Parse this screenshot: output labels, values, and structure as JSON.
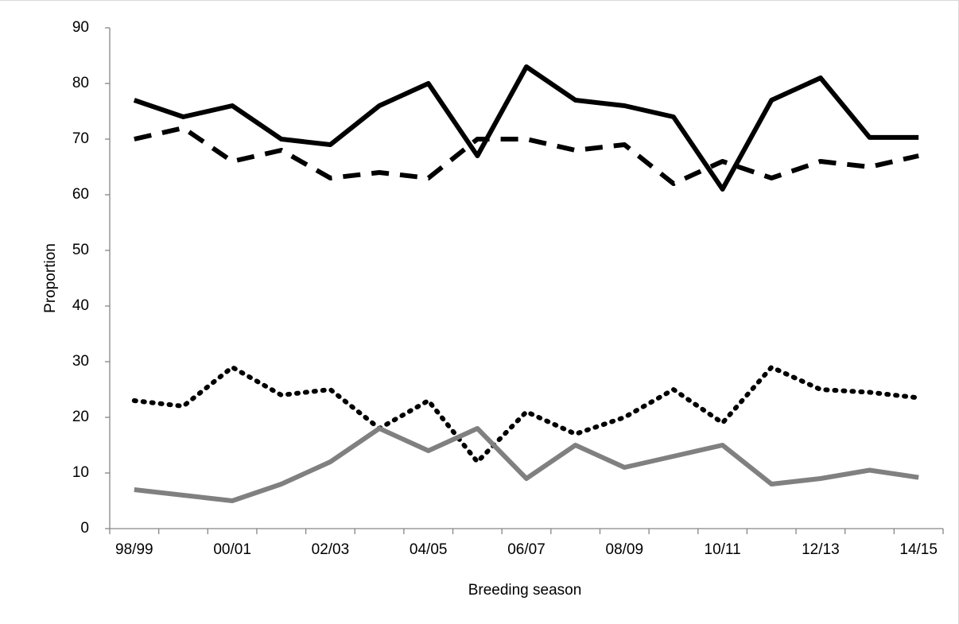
{
  "chart_data": {
    "type": "line",
    "x_label": "Breeding season",
    "y_label": "Proportion",
    "categories": [
      "98/99",
      null,
      "00/01",
      null,
      "02/03",
      null,
      "04/05",
      null,
      "06/07",
      null,
      "08/09",
      null,
      "10/11",
      null,
      "12/13",
      null,
      "14/15"
    ],
    "ylim": [
      0,
      90
    ],
    "yticks": [
      0,
      10,
      20,
      30,
      40,
      50,
      60,
      70,
      80,
      90
    ],
    "grid": false,
    "series": [
      {
        "color": "#000000",
        "dash": "solid",
        "values": [
          77,
          74,
          76,
          70,
          69,
          76,
          80,
          67,
          83,
          77,
          76,
          74,
          61,
          77,
          81,
          70.3,
          70.3
        ]
      },
      {
        "color": "#000000",
        "dash": "dashed",
        "values": [
          70,
          72,
          66,
          68,
          63,
          64,
          63,
          70,
          70,
          68,
          69,
          62,
          66,
          63,
          66,
          65,
          67
        ]
      },
      {
        "color": "#000000",
        "dash": "dotted",
        "values": [
          23,
          22,
          29,
          24,
          25,
          18,
          23,
          12,
          21,
          17,
          20,
          25,
          19,
          29,
          25,
          24.5,
          23.5
        ]
      },
      {
        "color": "#808080",
        "dash": "solid",
        "values": [
          7,
          6,
          5,
          8,
          12,
          18,
          14,
          18,
          9,
          15,
          11,
          13,
          15,
          8,
          9,
          10.5,
          9.2
        ]
      }
    ]
  }
}
